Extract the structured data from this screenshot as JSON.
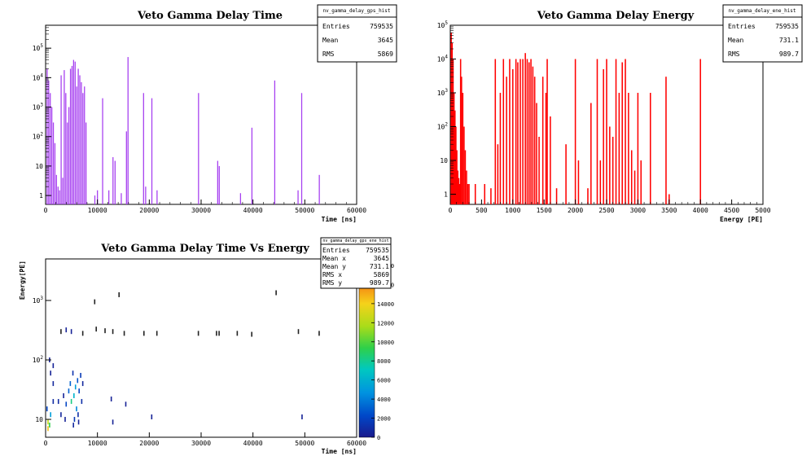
{
  "chart_data": [
    {
      "type": "bar",
      "title": "Veto Gamma Delay Time",
      "xlabel": "Time [ns]",
      "ylabel": "",
      "xlim": [
        0,
        60000
      ],
      "ylim": [
        0.5,
        600000
      ],
      "yscale": "log",
      "color": "#a63ff0",
      "x_ticks": [
        "0",
        "10000",
        "20000",
        "30000",
        "40000",
        "50000",
        "60000"
      ],
      "y_ticks": [
        {
          "base": "1",
          "exp": ""
        },
        {
          "base": "10",
          "exp": ""
        },
        {
          "base": "10",
          "exp": "2"
        },
        {
          "base": "10",
          "exp": "3"
        },
        {
          "base": "10",
          "exp": "4"
        },
        {
          "base": "10",
          "exp": "5"
        }
      ],
      "stats": {
        "name": "nv_gamma_delay_gps_hist",
        "rows": [
          [
            "Entries",
            "759535"
          ],
          [
            "Mean",
            "3645"
          ],
          [
            "RMS",
            "5869"
          ]
        ]
      },
      "x": [
        300,
        600,
        900,
        1200,
        1500,
        1800,
        2100,
        2400,
        2700,
        3000,
        3300,
        3600,
        3900,
        4200,
        4500,
        4800,
        5100,
        5400,
        5700,
        6000,
        6300,
        6600,
        6900,
        7200,
        7500,
        7800,
        9500,
        10000,
        11000,
        12200,
        13000,
        13400,
        14600,
        15600,
        15900,
        18900,
        19300,
        20500,
        21500,
        29500,
        33200,
        33500,
        37600,
        39800,
        44200,
        48700,
        49400,
        52800
      ],
      "values": [
        20000,
        8000,
        3000,
        1000,
        300,
        60,
        5,
        2,
        1.5,
        12000,
        4,
        18000,
        3000,
        300,
        1000,
        20000,
        25000,
        40000,
        35000,
        5000,
        20000,
        12000,
        7000,
        3000,
        5000,
        300,
        1,
        1.5,
        2000,
        1.5,
        20,
        15,
        1.2,
        150,
        50000,
        3000,
        2,
        2000,
        1.5,
        3000,
        15,
        10,
        1.2,
        200,
        8000,
        1.5,
        3000,
        5
      ]
    },
    {
      "type": "bar",
      "title": "Veto Gamma Delay Energy",
      "xlabel": "Energy [PE]",
      "ylabel": "",
      "xlim": [
        0,
        5000
      ],
      "ylim": [
        0.5,
        100000
      ],
      "yscale": "log",
      "color": "#ff0000",
      "x_ticks": [
        "0",
        "500",
        "1000",
        "1500",
        "2000",
        "2500",
        "3000",
        "3500",
        "4000",
        "4500",
        "5000"
      ],
      "y_ticks": [
        {
          "base": "1",
          "exp": ""
        },
        {
          "base": "10",
          "exp": ""
        },
        {
          "base": "10",
          "exp": "2"
        },
        {
          "base": "10",
          "exp": "3"
        },
        {
          "base": "10",
          "exp": "4"
        },
        {
          "base": "10",
          "exp": "5"
        }
      ],
      "stats": {
        "name": "nv_gamma_delay_ene_hist",
        "rows": [
          [
            "Entries",
            "759535"
          ],
          [
            "Mean",
            "731.1"
          ],
          [
            "RMS",
            "989.7"
          ]
        ]
      },
      "x": [
        15,
        30,
        45,
        60,
        75,
        90,
        105,
        120,
        135,
        150,
        165,
        180,
        200,
        220,
        240,
        260,
        280,
        300,
        400,
        550,
        650,
        720,
        760,
        800,
        850,
        900,
        950,
        1000,
        1050,
        1080,
        1120,
        1160,
        1200,
        1230,
        1260,
        1290,
        1320,
        1350,
        1380,
        1420,
        1480,
        1530,
        1550,
        1600,
        1700,
        1850,
        2000,
        2050,
        2200,
        2250,
        2350,
        2400,
        2450,
        2500,
        2550,
        2600,
        2650,
        2700,
        2750,
        2800,
        2850,
        2900,
        2950,
        3000,
        3050,
        3200,
        3450,
        3500,
        4000
      ],
      "values": [
        60000,
        30000,
        10000,
        1000,
        300,
        100,
        20,
        5,
        3,
        2,
        10000,
        3000,
        1000,
        100,
        20,
        5,
        2,
        2,
        2,
        2,
        1.5,
        10000,
        30,
        1000,
        10000,
        3000,
        10000,
        5000,
        10000,
        8000,
        10000,
        10000,
        15000,
        10000,
        8000,
        10000,
        6000,
        3000,
        500,
        50,
        3000,
        1000,
        10000,
        200,
        1.5,
        30,
        10000,
        10,
        1.5,
        500,
        10000,
        10,
        5000,
        10000,
        100,
        50,
        10000,
        1000,
        8000,
        10000,
        1000,
        20,
        5,
        1000,
        10,
        1000,
        3000,
        1,
        10000
      ]
    },
    {
      "type": "heatmap",
      "title": "Veto Gamma Delay Time Vs Energy",
      "xlabel": "Time [ns]",
      "ylabel": "Energy[PE]",
      "xlim": [
        0,
        60000
      ],
      "ylim": [
        5,
        5000
      ],
      "yscale": "log",
      "x_ticks": [
        "0",
        "10000",
        "20000",
        "30000",
        "40000",
        "50000",
        "60000"
      ],
      "y_ticks": [
        {
          "base": "10",
          "exp": ""
        },
        {
          "base": "10",
          "exp": "2"
        },
        {
          "base": "10",
          "exp": "3"
        }
      ],
      "colorbar": {
        "range": [
          0,
          18000
        ],
        "ticks": [
          "0",
          "2000",
          "4000",
          "6000",
          "8000",
          "10000",
          "12000",
          "14000",
          "16000",
          "18000"
        ]
      },
      "stats": {
        "name": "nv_gamma_delay_gps_ene_hist",
        "rows": [
          [
            "Entries",
            "759535"
          ],
          [
            "Mean x",
            "3645"
          ],
          [
            "Mean y",
            "731.1"
          ],
          [
            "RMS x",
            "5869"
          ],
          [
            "RMS y",
            "989.7"
          ]
        ]
      },
      "points": [
        [
          500,
          7,
          14000
        ],
        [
          500,
          9,
          12000
        ],
        [
          800,
          8,
          9000
        ],
        [
          1000,
          12,
          5000
        ],
        [
          300,
          15,
          2000
        ],
        [
          1500,
          20,
          800
        ],
        [
          1500,
          40,
          600
        ],
        [
          1500,
          80,
          400
        ],
        [
          1000,
          60,
          300
        ],
        [
          800,
          100,
          300
        ],
        [
          2500,
          20,
          800
        ],
        [
          3000,
          12,
          600
        ],
        [
          3500,
          25,
          400
        ],
        [
          4000,
          18,
          2000
        ],
        [
          4500,
          30,
          3000
        ],
        [
          5000,
          20,
          8000
        ],
        [
          5500,
          25,
          6000
        ],
        [
          5800,
          35,
          5000
        ],
        [
          6000,
          15,
          4000
        ],
        [
          6200,
          45,
          2500
        ],
        [
          6500,
          30,
          2000
        ],
        [
          6800,
          55,
          1500
        ],
        [
          7000,
          20,
          1000
        ],
        [
          5300,
          60,
          1200
        ],
        [
          4800,
          40,
          3000
        ],
        [
          5600,
          10,
          1500
        ],
        [
          6300,
          12,
          1000
        ],
        [
          7200,
          40,
          600
        ],
        [
          3800,
          10,
          400
        ],
        [
          3000,
          300,
          80
        ],
        [
          4000,
          320,
          100
        ],
        [
          5000,
          300,
          100
        ],
        [
          7200,
          280,
          60
        ],
        [
          9800,
          330,
          40
        ],
        [
          11500,
          310,
          60
        ],
        [
          13000,
          300,
          40
        ],
        [
          15200,
          280,
          50
        ],
        [
          19000,
          280,
          40
        ],
        [
          21500,
          280,
          40
        ],
        [
          29500,
          280,
          40
        ],
        [
          33000,
          280,
          40
        ],
        [
          33500,
          280,
          40
        ],
        [
          37000,
          280,
          40
        ],
        [
          39800,
          270,
          40
        ],
        [
          48800,
          300,
          40
        ],
        [
          52800,
          280,
          40
        ],
        [
          9500,
          950,
          20
        ],
        [
          14200,
          1250,
          20
        ],
        [
          44500,
          1350,
          20
        ],
        [
          12700,
          22,
          200
        ],
        [
          13000,
          9,
          150
        ],
        [
          15500,
          18,
          150
        ],
        [
          20500,
          11,
          300
        ],
        [
          49500,
          11,
          200
        ],
        [
          6400,
          9,
          400
        ],
        [
          5400,
          8,
          600
        ]
      ]
    }
  ]
}
